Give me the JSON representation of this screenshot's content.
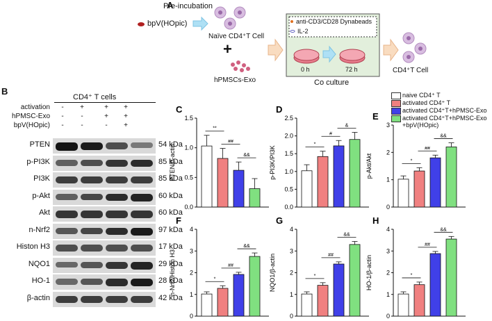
{
  "panel_a": {
    "letter": "A",
    "preincubation": "Pre-incubation",
    "drug": "bpV(HOpic)",
    "naive_cell": "Naïve CD4⁺T Cell",
    "plus": "+",
    "exo": "hPMSCs-Exo",
    "dynabeads": "anti-CD3/CD28 Dynabeads",
    "il2": "IL-2",
    "time_0": "0 h",
    "time_72": "72 h",
    "coculture": "Co culture",
    "result_cell": "CD4⁺T Cell"
  },
  "panel_b": {
    "letter": "B",
    "title": "CD4⁺ T cells",
    "conditions": [
      {
        "label": "activation",
        "signs": [
          "-",
          "+",
          "+",
          "+"
        ]
      },
      {
        "label": "hPMSC-Exo",
        "signs": [
          "-",
          "-",
          "+",
          "+"
        ]
      },
      {
        "label": "bpV(HOpic)",
        "signs": [
          "-",
          "-",
          "-",
          "+"
        ]
      }
    ],
    "blots": [
      {
        "name": "PTEN",
        "kda": "54 kDa",
        "intensity": [
          0.95,
          0.9,
          0.6,
          0.35
        ]
      },
      {
        "name": "p-PI3K",
        "kda": "85 kDa",
        "intensity": [
          0.5,
          0.6,
          0.75,
          0.8
        ]
      },
      {
        "name": "PI3K",
        "kda": "85 kDa",
        "intensity": [
          0.7,
          0.7,
          0.7,
          0.7
        ]
      },
      {
        "name": "p-Akt",
        "kda": "60 kDa",
        "intensity": [
          0.5,
          0.65,
          0.8,
          0.85
        ]
      },
      {
        "name": "Akt",
        "kda": "60 kDa",
        "intensity": [
          0.75,
          0.75,
          0.75,
          0.75
        ]
      },
      {
        "name": "n-Nrf2",
        "kda": "97 kDa",
        "intensity": [
          0.55,
          0.65,
          0.8,
          0.9
        ]
      },
      {
        "name": "Histon H3",
        "kda": "17 kDa",
        "intensity": [
          0.6,
          0.6,
          0.6,
          0.6
        ]
      },
      {
        "name": "NQO1",
        "kda": "29 kDa",
        "intensity": [
          0.45,
          0.55,
          0.75,
          0.85
        ]
      },
      {
        "name": "HO-1",
        "kda": "28 kDa",
        "intensity": [
          0.45,
          0.55,
          0.8,
          0.9
        ]
      },
      {
        "name": "β-actin",
        "kda": "42 kDa",
        "intensity": [
          0.7,
          0.7,
          0.7,
          0.7
        ]
      }
    ]
  },
  "legend": {
    "entries": [
      {
        "label": "naive CD4⁺ T",
        "color": "#ffffff"
      },
      {
        "label": "activated CD4⁺ T",
        "color": "#f08080"
      },
      {
        "label": "activated CD4⁺T+hPMSC-Exo",
        "color": "#4040e8"
      },
      {
        "label": "activated CD4⁺T+hPMSC-Exo",
        "label2": "+bpV(HOpic)",
        "color": "#80e080"
      }
    ]
  },
  "chart_data": [
    {
      "letter": "C",
      "type": "bar",
      "ylabel": "PTEN/β-actin",
      "ylim": [
        0,
        1.5
      ],
      "yticks": [
        "0.0",
        "0.5",
        "1.0",
        "1.5"
      ],
      "values": [
        1.03,
        0.82,
        0.62,
        0.31
      ],
      "errors": [
        0.18,
        0.17,
        0.14,
        0.17
      ],
      "sig": [
        {
          "from": 0,
          "to": 1,
          "label": "**"
        },
        {
          "from": 1,
          "to": 2,
          "label": "##"
        },
        {
          "from": 2,
          "to": 3,
          "label": "&&"
        }
      ]
    },
    {
      "letter": "D",
      "type": "bar",
      "ylabel": "p-PI3K/PI3K",
      "ylim": [
        0,
        2.5
      ],
      "yticks": [
        "0.0",
        "0.5",
        "1.0",
        "1.5",
        "2.0",
        "2.5"
      ],
      "values": [
        1.02,
        1.42,
        1.72,
        1.9
      ],
      "errors": [
        0.17,
        0.15,
        0.15,
        0.2
      ],
      "sig": [
        {
          "from": 0,
          "to": 1,
          "label": "*"
        },
        {
          "from": 1,
          "to": 2,
          "label": "#"
        },
        {
          "from": 2,
          "to": 3,
          "label": "&"
        }
      ]
    },
    {
      "letter": "E",
      "type": "bar",
      "ylabel": "p-Akt/Akt",
      "ylim": [
        0,
        3
      ],
      "yticks": [
        "0",
        "1",
        "2",
        "3"
      ],
      "values": [
        1.02,
        1.32,
        1.8,
        2.2
      ],
      "errors": [
        0.12,
        0.12,
        0.1,
        0.15
      ],
      "sig": [
        {
          "from": 0,
          "to": 1,
          "label": "*"
        },
        {
          "from": 1,
          "to": 2,
          "label": "##"
        },
        {
          "from": 2,
          "to": 3,
          "label": "&&"
        }
      ]
    },
    {
      "letter": "F",
      "type": "bar",
      "ylabel": "n-Nrf2/Histon H3",
      "ylim": [
        0,
        4
      ],
      "yticks": [
        "0",
        "1",
        "2",
        "3",
        "4"
      ],
      "values": [
        1.02,
        1.28,
        1.92,
        2.75
      ],
      "errors": [
        0.1,
        0.12,
        0.1,
        0.16
      ],
      "sig": [
        {
          "from": 0,
          "to": 1,
          "label": "*"
        },
        {
          "from": 1,
          "to": 2,
          "label": "##"
        },
        {
          "from": 2,
          "to": 3,
          "label": "&&"
        }
      ]
    },
    {
      "letter": "G",
      "type": "bar",
      "ylabel": "NQO1/β-actin",
      "ylim": [
        0,
        4
      ],
      "yticks": [
        "0",
        "1",
        "2",
        "3",
        "4"
      ],
      "values": [
        1.02,
        1.42,
        2.4,
        3.3
      ],
      "errors": [
        0.1,
        0.12,
        0.1,
        0.14
      ],
      "sig": [
        {
          "from": 0,
          "to": 1,
          "label": "*"
        },
        {
          "from": 1,
          "to": 2,
          "label": "##"
        },
        {
          "from": 2,
          "to": 3,
          "label": "&&"
        }
      ]
    },
    {
      "letter": "H",
      "type": "bar",
      "ylabel": "HO-1/β-actin",
      "ylim": [
        0,
        4
      ],
      "yticks": [
        "0",
        "1",
        "2",
        "3",
        "4"
      ],
      "values": [
        1.02,
        1.45,
        2.88,
        3.55
      ],
      "errors": [
        0.1,
        0.12,
        0.1,
        0.12
      ],
      "sig": [
        {
          "from": 0,
          "to": 1,
          "label": "*"
        },
        {
          "from": 1,
          "to": 2,
          "label": "##"
        },
        {
          "from": 2,
          "to": 3,
          "label": "&&"
        }
      ]
    }
  ]
}
